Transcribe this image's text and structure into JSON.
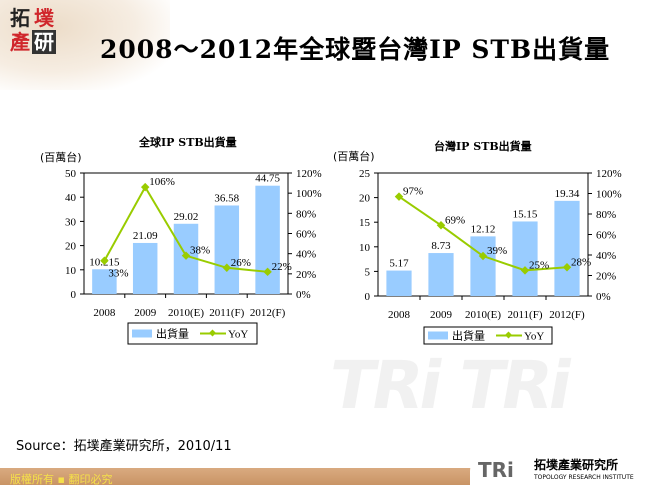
{
  "header": {
    "title": "2008～2012年全球暨台灣IP STB出貨量",
    "logo_chars": [
      "拓",
      "墣",
      "產",
      "研"
    ]
  },
  "watermark": "TRi TRi",
  "chart_data": [
    {
      "type": "bar+line",
      "title": "全球IP STB出貨量",
      "unit": "(百萬台)",
      "categories": [
        "2008",
        "2009",
        "2010(E)",
        "2011(F)",
        "2012(F)"
      ],
      "series": [
        {
          "name": "出貨量",
          "type": "bar",
          "values": [
            10.215,
            21.09,
            29.02,
            36.58,
            44.75
          ],
          "labels": [
            "10.215",
            "21.09",
            "29.02",
            "36.58",
            "44.75"
          ],
          "color": "#99ccff"
        },
        {
          "name": "YoY",
          "type": "line",
          "values": [
            33,
            106,
            38,
            26,
            22
          ],
          "labels": [
            "33%",
            "106%",
            "38%",
            "26%",
            "22%"
          ],
          "color": "#99cc00"
        }
      ],
      "ylim": [
        0,
        50
      ],
      "yticks": [
        "0",
        "10",
        "20",
        "30",
        "40",
        "50"
      ],
      "y2lim": [
        0,
        120
      ],
      "y2ticks": [
        "0%",
        "20%",
        "40%",
        "60%",
        "80%",
        "100%",
        "120%"
      ],
      "legend": "bottom"
    },
    {
      "type": "bar+line",
      "title": "台灣IP STB出貨量",
      "unit": "(百萬台)",
      "categories": [
        "2008",
        "2009",
        "2010(E)",
        "2011(F)",
        "2012(F)"
      ],
      "series": [
        {
          "name": "出貨量",
          "type": "bar",
          "values": [
            5.17,
            8.73,
            12.12,
            15.15,
            19.34
          ],
          "labels": [
            "5.17",
            "8.73",
            "12.12",
            "15.15",
            "19.34"
          ],
          "color": "#99ccff"
        },
        {
          "name": "YoY",
          "type": "line",
          "values": [
            97,
            69,
            39,
            25,
            28
          ],
          "labels": [
            "97%",
            "69%",
            "39%",
            "25%",
            "28%"
          ],
          "color": "#99cc00"
        }
      ],
      "ylim": [
        0,
        25
      ],
      "yticks": [
        "0",
        "5",
        "10",
        "15",
        "20",
        "25"
      ],
      "y2lim": [
        0,
        120
      ],
      "y2ticks": [
        "0%",
        "20%",
        "40%",
        "60%",
        "80%",
        "100%",
        "120%"
      ],
      "legend": "bottom"
    }
  ],
  "source": "Source：拓墣產業研究所，2010/11",
  "footer": {
    "copyright": "版權所有 ▪ 翻印必究",
    "brand_logo": "TRi",
    "brand_cn": "拓墣產業研究所",
    "brand_en": "TOPOLOGY RESEARCH INSTITUTE"
  }
}
